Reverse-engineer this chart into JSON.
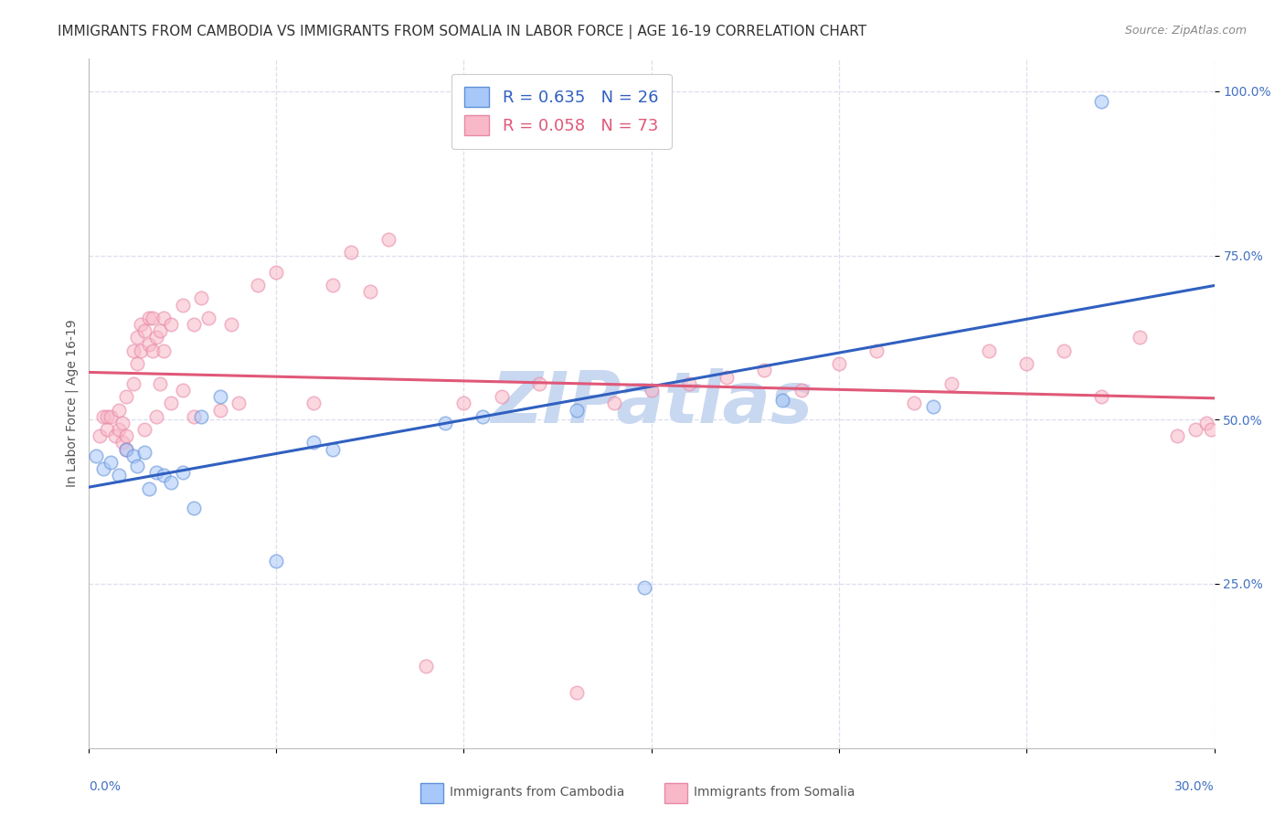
{
  "title": "IMMIGRANTS FROM CAMBODIA VS IMMIGRANTS FROM SOMALIA IN LABOR FORCE | AGE 16-19 CORRELATION CHART",
  "source": "Source: ZipAtlas.com",
  "ylabel": "In Labor Force | Age 16-19",
  "legend_r1": "R = 0.635",
  "legend_n1": "N = 26",
  "legend_r2": "R = 0.058",
  "legend_n2": "N = 73",
  "cambodia_color": "#a8c8fa",
  "somalia_color": "#f8b8c8",
  "cambodia_edge": "#6090d8",
  "somalia_edge": "#e888a8",
  "line_cambodia": "#3060c0",
  "line_somalia": "#e05878",
  "watermark": "ZIPatlas",
  "watermark_color": "#c8d8f0",
  "xlim": [
    0.0,
    0.3
  ],
  "ylim": [
    0.0,
    1.05
  ],
  "x_right_label": "30.0%",
  "x_left_label": "0.0%",
  "y_tick_values": [
    0.25,
    0.5,
    0.75,
    1.0
  ],
  "y_tick_labels": [
    "25.0%",
    "50.0%",
    "75.0%",
    "100.0%"
  ],
  "cambodia_x": [
    0.002,
    0.004,
    0.006,
    0.008,
    0.01,
    0.012,
    0.013,
    0.015,
    0.016,
    0.018,
    0.02,
    0.022,
    0.025,
    0.028,
    0.03,
    0.035,
    0.05,
    0.06,
    0.065,
    0.095,
    0.105,
    0.13,
    0.148,
    0.185,
    0.225,
    0.27
  ],
  "cambodia_y": [
    0.445,
    0.425,
    0.435,
    0.415,
    0.455,
    0.445,
    0.43,
    0.45,
    0.395,
    0.42,
    0.415,
    0.405,
    0.42,
    0.365,
    0.505,
    0.535,
    0.285,
    0.465,
    0.455,
    0.495,
    0.505,
    0.515,
    0.245,
    0.53,
    0.52,
    0.985
  ],
  "somalia_x": [
    0.003,
    0.004,
    0.005,
    0.005,
    0.006,
    0.007,
    0.008,
    0.008,
    0.009,
    0.009,
    0.01,
    0.01,
    0.01,
    0.012,
    0.012,
    0.013,
    0.013,
    0.014,
    0.014,
    0.015,
    0.015,
    0.016,
    0.016,
    0.017,
    0.017,
    0.018,
    0.018,
    0.019,
    0.019,
    0.02,
    0.02,
    0.022,
    0.022,
    0.025,
    0.025,
    0.028,
    0.028,
    0.03,
    0.032,
    0.035,
    0.038,
    0.04,
    0.045,
    0.05,
    0.06,
    0.065,
    0.07,
    0.075,
    0.08,
    0.09,
    0.1,
    0.11,
    0.12,
    0.13,
    0.14,
    0.15,
    0.16,
    0.17,
    0.18,
    0.19,
    0.2,
    0.21,
    0.22,
    0.23,
    0.24,
    0.25,
    0.26,
    0.27,
    0.28,
    0.29,
    0.295,
    0.298,
    0.299
  ],
  "somalia_y": [
    0.475,
    0.505,
    0.485,
    0.505,
    0.505,
    0.475,
    0.485,
    0.515,
    0.465,
    0.495,
    0.455,
    0.475,
    0.535,
    0.555,
    0.605,
    0.585,
    0.625,
    0.605,
    0.645,
    0.635,
    0.485,
    0.615,
    0.655,
    0.605,
    0.655,
    0.625,
    0.505,
    0.635,
    0.555,
    0.655,
    0.605,
    0.525,
    0.645,
    0.675,
    0.545,
    0.645,
    0.505,
    0.685,
    0.655,
    0.515,
    0.645,
    0.525,
    0.705,
    0.725,
    0.525,
    0.705,
    0.755,
    0.695,
    0.775,
    0.125,
    0.525,
    0.535,
    0.555,
    0.085,
    0.525,
    0.545,
    0.555,
    0.565,
    0.575,
    0.545,
    0.585,
    0.605,
    0.525,
    0.555,
    0.605,
    0.585,
    0.605,
    0.535,
    0.625,
    0.475,
    0.485,
    0.495,
    0.485
  ],
  "title_fontsize": 11,
  "source_fontsize": 9,
  "axis_label_fontsize": 10,
  "tick_fontsize": 10,
  "legend_fontsize": 13,
  "marker_size": 110,
  "marker_alpha": 0.55,
  "marker_linewidth": 1.2,
  "grid_color": "#ddddee",
  "grid_style": "--",
  "legend_label1": "Immigrants from Cambodia",
  "legend_label2": "Immigrants from Somalia"
}
